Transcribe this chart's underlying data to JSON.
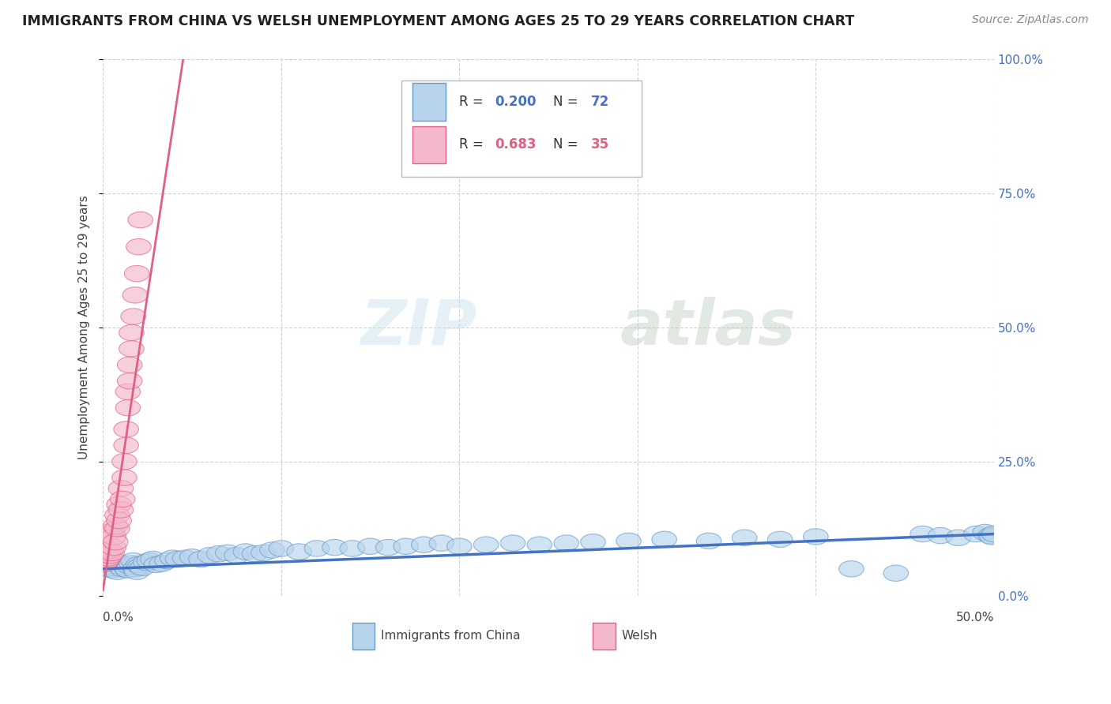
{
  "title": "IMMIGRANTS FROM CHINA VS WELSH UNEMPLOYMENT AMONG AGES 25 TO 29 YEARS CORRELATION CHART",
  "source": "Source: ZipAtlas.com",
  "ylabel": "Unemployment Among Ages 25 to 29 years",
  "watermark_zip": "ZIP",
  "watermark_atlas": "atlas",
  "legend_r1": "0.200",
  "legend_n1": "72",
  "legend_r2": "0.683",
  "legend_n2": "35",
  "color_china_fill": "#b8d4eb",
  "color_china_edge": "#6699cc",
  "color_welsh_fill": "#f4b8cc",
  "color_welsh_edge": "#e06080",
  "color_china_line": "#4472c4",
  "color_welsh_line": "#e06080",
  "color_r1": "#4472c4",
  "color_r2": "#e06080",
  "color_n1": "#e06080",
  "color_n2": "#e06080",
  "china_points": [
    [
      0.002,
      0.06
    ],
    [
      0.003,
      0.055
    ],
    [
      0.004,
      0.05
    ],
    [
      0.005,
      0.048
    ],
    [
      0.006,
      0.052
    ],
    [
      0.007,
      0.058
    ],
    [
      0.008,
      0.045
    ],
    [
      0.009,
      0.062
    ],
    [
      0.01,
      0.055
    ],
    [
      0.011,
      0.05
    ],
    [
      0.012,
      0.058
    ],
    [
      0.013,
      0.052
    ],
    [
      0.014,
      0.048
    ],
    [
      0.015,
      0.055
    ],
    [
      0.016,
      0.06
    ],
    [
      0.017,
      0.065
    ],
    [
      0.018,
      0.05
    ],
    [
      0.019,
      0.045
    ],
    [
      0.02,
      0.058
    ],
    [
      0.021,
      0.055
    ],
    [
      0.022,
      0.052
    ],
    [
      0.024,
      0.062
    ],
    [
      0.026,
      0.065
    ],
    [
      0.028,
      0.068
    ],
    [
      0.03,
      0.058
    ],
    [
      0.033,
      0.06
    ],
    [
      0.036,
      0.065
    ],
    [
      0.039,
      0.07
    ],
    [
      0.042,
      0.068
    ],
    [
      0.046,
      0.07
    ],
    [
      0.05,
      0.072
    ],
    [
      0.055,
      0.068
    ],
    [
      0.06,
      0.075
    ],
    [
      0.065,
      0.078
    ],
    [
      0.07,
      0.08
    ],
    [
      0.075,
      0.075
    ],
    [
      0.08,
      0.082
    ],
    [
      0.085,
      0.078
    ],
    [
      0.09,
      0.08
    ],
    [
      0.095,
      0.085
    ],
    [
      0.1,
      0.088
    ],
    [
      0.11,
      0.082
    ],
    [
      0.12,
      0.088
    ],
    [
      0.13,
      0.09
    ],
    [
      0.14,
      0.088
    ],
    [
      0.15,
      0.092
    ],
    [
      0.16,
      0.09
    ],
    [
      0.17,
      0.092
    ],
    [
      0.18,
      0.095
    ],
    [
      0.19,
      0.098
    ],
    [
      0.2,
      0.092
    ],
    [
      0.215,
      0.095
    ],
    [
      0.23,
      0.098
    ],
    [
      0.245,
      0.095
    ],
    [
      0.26,
      0.098
    ],
    [
      0.275,
      0.1
    ],
    [
      0.295,
      0.102
    ],
    [
      0.315,
      0.105
    ],
    [
      0.34,
      0.102
    ],
    [
      0.36,
      0.108
    ],
    [
      0.38,
      0.105
    ],
    [
      0.4,
      0.11
    ],
    [
      0.42,
      0.05
    ],
    [
      0.445,
      0.042
    ],
    [
      0.46,
      0.115
    ],
    [
      0.47,
      0.112
    ],
    [
      0.48,
      0.108
    ],
    [
      0.49,
      0.115
    ],
    [
      0.495,
      0.118
    ],
    [
      0.498,
      0.112
    ],
    [
      0.499,
      0.11
    ],
    [
      0.5,
      0.115
    ]
  ],
  "welsh_points": [
    [
      0.001,
      0.06
    ],
    [
      0.002,
      0.065
    ],
    [
      0.002,
      0.075
    ],
    [
      0.003,
      0.07
    ],
    [
      0.003,
      0.08
    ],
    [
      0.004,
      0.075
    ],
    [
      0.004,
      0.085
    ],
    [
      0.005,
      0.08
    ],
    [
      0.005,
      0.12
    ],
    [
      0.006,
      0.09
    ],
    [
      0.006,
      0.11
    ],
    [
      0.007,
      0.1
    ],
    [
      0.007,
      0.13
    ],
    [
      0.008,
      0.125
    ],
    [
      0.008,
      0.15
    ],
    [
      0.009,
      0.14
    ],
    [
      0.009,
      0.17
    ],
    [
      0.01,
      0.16
    ],
    [
      0.01,
      0.2
    ],
    [
      0.011,
      0.18
    ],
    [
      0.012,
      0.22
    ],
    [
      0.012,
      0.25
    ],
    [
      0.013,
      0.28
    ],
    [
      0.013,
      0.31
    ],
    [
      0.014,
      0.35
    ],
    [
      0.014,
      0.38
    ],
    [
      0.015,
      0.4
    ],
    [
      0.015,
      0.43
    ],
    [
      0.016,
      0.46
    ],
    [
      0.016,
      0.49
    ],
    [
      0.017,
      0.52
    ],
    [
      0.018,
      0.56
    ],
    [
      0.019,
      0.6
    ],
    [
      0.02,
      0.65
    ],
    [
      0.021,
      0.7
    ]
  ],
  "china_trend_x": [
    0.0,
    0.5
  ],
  "china_trend_y": [
    0.05,
    0.115
  ],
  "welsh_trend_x": [
    0.0,
    0.045
  ],
  "welsh_trend_y": [
    0.01,
    1.0
  ],
  "xlim": [
    0.0,
    0.5
  ],
  "ylim": [
    0.0,
    1.0
  ],
  "ytick_vals": [
    0.0,
    0.25,
    0.5,
    0.75,
    1.0
  ],
  "ytick_labels": [
    "0.0%",
    "25.0%",
    "50.0%",
    "75.0%",
    "100.0%"
  ]
}
